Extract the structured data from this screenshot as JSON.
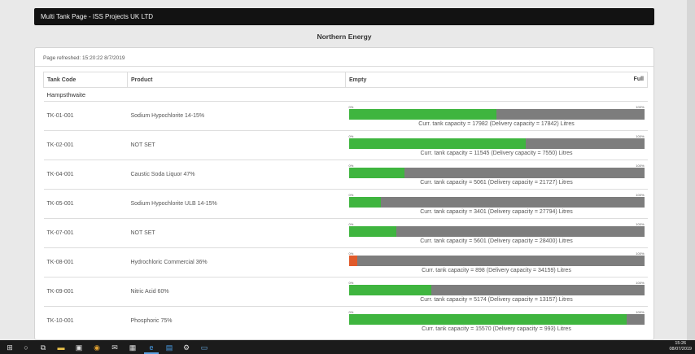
{
  "window": {
    "title": "Multi Tank Page - ISS Projects UK LTD"
  },
  "page": {
    "subtitle": "Northern Energy",
    "refreshed": "Page refreshed: 15:20:22 8/7/2019"
  },
  "table": {
    "headers": {
      "code": "Tank Code",
      "product": "Product",
      "empty": "Empty",
      "full": "Full"
    },
    "group": "Hampsthwaite",
    "pct_min": "0%",
    "pct_max": "100%",
    "tanks": [
      {
        "code": "TK-01-001",
        "product": "Sodium Hypochlorite 14-15%",
        "fill": 0.5,
        "status": "ok",
        "caption": "Curr. tank capacity = 17982  (Delivery capacity = 17842) Litres"
      },
      {
        "code": "TK-02-001",
        "product": "NOT SET",
        "fill": 0.6,
        "status": "ok",
        "caption": "Curr. tank capacity = 11545  (Delivery capacity = 7550) Litres"
      },
      {
        "code": "TK-04-001",
        "product": "Caustic Soda Liquor 47%",
        "fill": 0.19,
        "status": "ok",
        "caption": "Curr. tank capacity = 5061  (Delivery capacity = 21727) Litres"
      },
      {
        "code": "TK-05-001",
        "product": "Sodium Hypochlorite ULB 14-15%",
        "fill": 0.11,
        "status": "ok",
        "caption": "Curr. tank capacity = 3401  (Delivery capacity = 27794) Litres"
      },
      {
        "code": "TK-07-001",
        "product": "NOT SET",
        "fill": 0.16,
        "status": "ok",
        "caption": "Curr. tank capacity = 5601  (Delivery capacity = 28400) Litres"
      },
      {
        "code": "TK-08-001",
        "product": "Hydrochloric Commercial 36%",
        "fill": 0.03,
        "status": "low",
        "caption": "Curr. tank capacity = 898  (Delivery capacity = 34159) Litres"
      },
      {
        "code": "TK-09-001",
        "product": "Nitric Acid 60%",
        "fill": 0.28,
        "status": "ok",
        "caption": "Curr. tank capacity = 5174  (Delivery capacity = 13157) Litres"
      },
      {
        "code": "TK-10-001",
        "product": "Phosphoric 75%",
        "fill": 0.94,
        "status": "ok",
        "caption": "Curr. tank capacity = 15570  (Delivery capacity = 993) Litres"
      }
    ]
  },
  "taskbar": {
    "time": "15:26",
    "date": "08/07/2019"
  },
  "colors": {
    "fill_ok": "#3fb53f",
    "fill_low": "#e05a2b",
    "bar_bg": "#7d7d7d",
    "titlebar": "#121212"
  }
}
